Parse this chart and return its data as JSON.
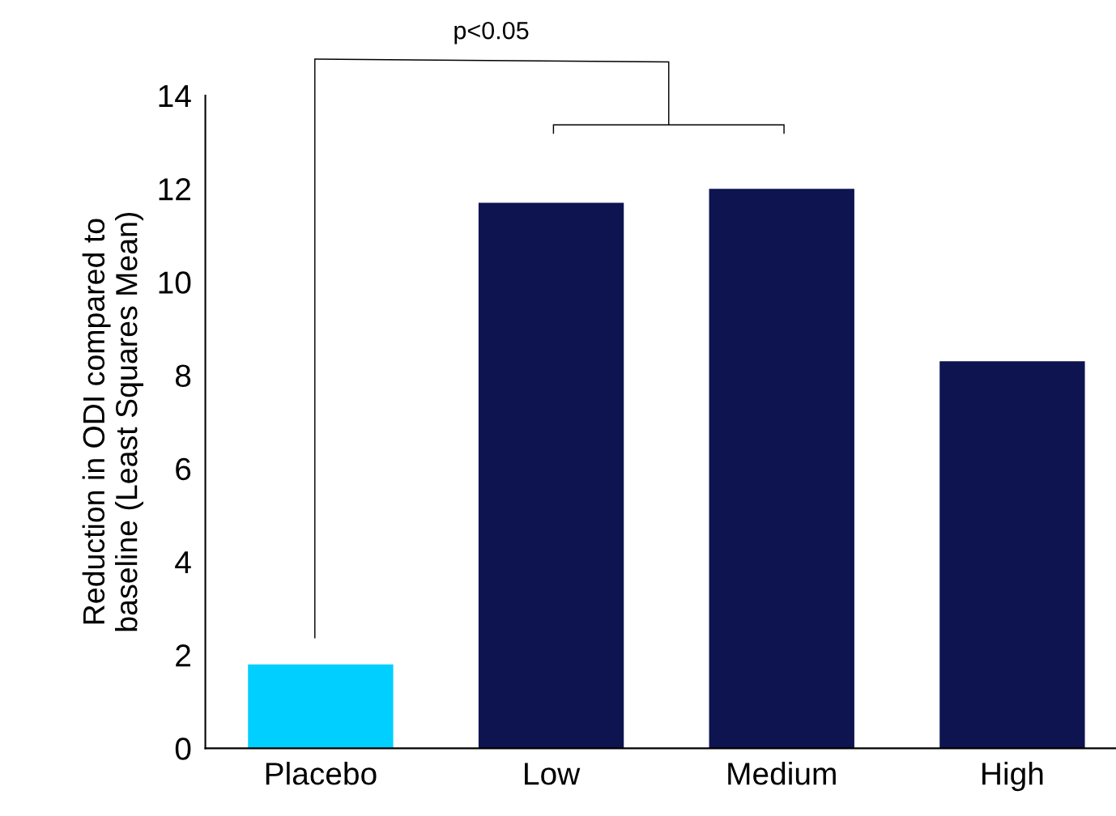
{
  "chart_data": {
    "type": "bar",
    "ylabel": "Reduction in ODI compared to\nbaseline (Least Squares Mean)",
    "categories": [
      "Placebo",
      "Low",
      "Medium",
      "High"
    ],
    "values": [
      1.8,
      11.7,
      12.0,
      8.3
    ],
    "colors": [
      "#00cfff",
      "#0d1450",
      "#0d1450",
      "#0d1450"
    ],
    "ylim": [
      0,
      14
    ],
    "yticks": [
      0,
      2,
      4,
      6,
      8,
      10,
      12,
      14
    ],
    "grid": false,
    "annotations": [
      "p<0.05"
    ]
  }
}
